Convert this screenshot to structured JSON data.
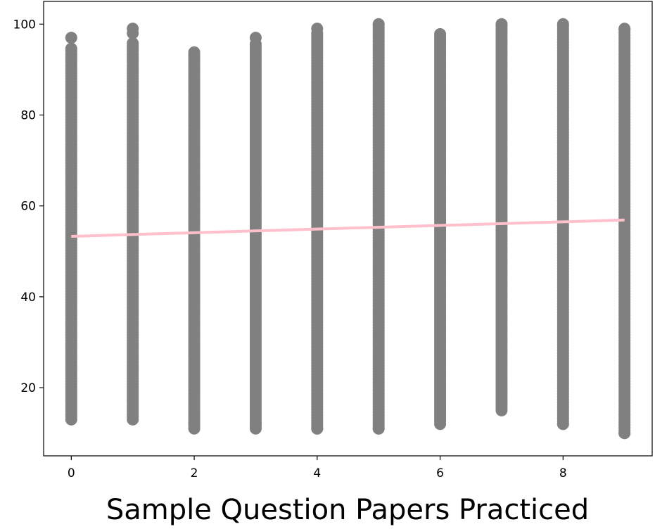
{
  "chart_data": {
    "type": "scatter",
    "title": "",
    "xlabel": "Sample Question Papers Practiced",
    "ylabel": "",
    "xlim": [
      -0.45,
      9.45
    ],
    "ylim": [
      5,
      105
    ],
    "xticks": [
      0,
      2,
      4,
      6,
      8
    ],
    "yticks": [
      20,
      40,
      60,
      80,
      100
    ],
    "grid": false,
    "legend": "none",
    "series": [
      {
        "kind": "scatter",
        "color": "#808080",
        "points": [
          {
            "x": 0,
            "ymin": 13,
            "ymax": 95
          },
          {
            "x": 1,
            "ymin": 13,
            "ymax": 96
          },
          {
            "x": 2,
            "ymin": 11,
            "ymax": 94
          },
          {
            "x": 3,
            "ymin": 11,
            "ymax": 96
          },
          {
            "x": 4,
            "ymin": 11,
            "ymax": 98
          },
          {
            "x": 5,
            "ymin": 11,
            "ymax": 100
          },
          {
            "x": 6,
            "ymin": 12,
            "ymax": 98
          },
          {
            "x": 7,
            "ymin": 15,
            "ymax": 100
          },
          {
            "x": 8,
            "ymin": 12,
            "ymax": 100
          },
          {
            "x": 9,
            "ymin": 10,
            "ymax": 99
          }
        ],
        "outliers": [
          {
            "x": 0,
            "y": 97
          },
          {
            "x": 1,
            "y": 99
          },
          {
            "x": 1,
            "y": 98
          },
          {
            "x": 2,
            "y": 12
          },
          {
            "x": 3,
            "y": 12
          },
          {
            "x": 3,
            "y": 97
          },
          {
            "x": 4,
            "y": 11
          },
          {
            "x": 4,
            "y": 99
          },
          {
            "x": 5,
            "y": 100
          },
          {
            "x": 5,
            "y": 11
          },
          {
            "x": 7,
            "y": 100
          },
          {
            "x": 8,
            "y": 100
          },
          {
            "x": 8,
            "y": 12
          },
          {
            "x": 9,
            "y": 10
          },
          {
            "x": 9,
            "y": 99
          }
        ]
      },
      {
        "kind": "line",
        "color": "#ffc0cb",
        "x": [
          0,
          9
        ],
        "y": [
          53.3,
          56.9
        ]
      }
    ]
  }
}
